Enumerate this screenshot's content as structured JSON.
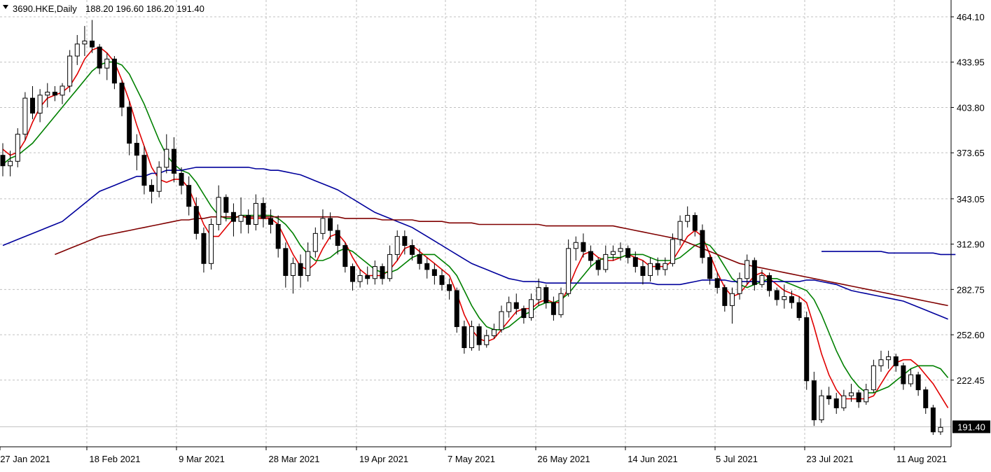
{
  "header": {
    "symbol_timeframe": "3690.HKE,Daily",
    "ohlc": "188.20 196.60 186.20 191.40"
  },
  "colors": {
    "up_body": "#ffffff",
    "down_body": "#000000",
    "ma_fast": "#e00000",
    "ma_mid": "#008000",
    "ma_slow_blue": "#00009c",
    "ma_slow_brown": "#800000",
    "grid": "#c0c0c0",
    "last_price_bg": "#000000"
  },
  "chart_data": {
    "type": "candlestick",
    "x_axis": {
      "tick_labels": [
        "27 Jan 2021",
        "18 Feb 2021",
        "9 Mar 2021",
        "28 Mar 2021",
        "19 Apr 2021",
        "7 May 2021",
        "26 May 2021",
        "14 Jun 2021",
        "5 Jul 2021",
        "23 Jul 2021",
        "11 Aug 2021"
      ]
    },
    "y_axis": {
      "tick_labels": [
        "464.10",
        "433.95",
        "403.80",
        "373.65",
        "343.05",
        "312.90",
        "282.75",
        "252.60",
        "222.45"
      ],
      "tick_values": [
        464.1,
        433.95,
        403.8,
        373.65,
        343.05,
        312.9,
        282.75,
        252.6,
        222.45
      ],
      "range": [
        186,
        468
      ]
    },
    "last_price": 191.4,
    "last_price_label": "191.40",
    "grid": true,
    "candles": [
      [
        372,
        380,
        358,
        365
      ],
      [
        365,
        375,
        358,
        368
      ],
      [
        368,
        390,
        364,
        386
      ],
      [
        386,
        414,
        382,
        410
      ],
      [
        410,
        418,
        396,
        400
      ],
      [
        400,
        416,
        394,
        412
      ],
      [
        412,
        420,
        404,
        414
      ],
      [
        414,
        418,
        408,
        412
      ],
      [
        412,
        420,
        406,
        418
      ],
      [
        418,
        442,
        414,
        438
      ],
      [
        438,
        452,
        432,
        446
      ],
      [
        446,
        458,
        438,
        448
      ],
      [
        448,
        462,
        440,
        444
      ],
      [
        444,
        446,
        426,
        430
      ],
      [
        430,
        440,
        422,
        436
      ],
      [
        436,
        438,
        416,
        420
      ],
      [
        420,
        422,
        398,
        404
      ],
      [
        404,
        408,
        372,
        380
      ],
      [
        380,
        386,
        362,
        372
      ],
      [
        372,
        378,
        346,
        352
      ],
      [
        352,
        356,
        340,
        348
      ],
      [
        348,
        368,
        344,
        364
      ],
      [
        364,
        386,
        360,
        376
      ],
      [
        376,
        384,
        354,
        360
      ],
      [
        360,
        364,
        346,
        352
      ],
      [
        352,
        358,
        332,
        338
      ],
      [
        338,
        344,
        316,
        320
      ],
      [
        320,
        324,
        294,
        300
      ],
      [
        300,
        330,
        296,
        326
      ],
      [
        326,
        352,
        322,
        344
      ],
      [
        344,
        346,
        328,
        334
      ],
      [
        334,
        340,
        318,
        328
      ],
      [
        328,
        344,
        320,
        332
      ],
      [
        332,
        336,
        320,
        326
      ],
      [
        326,
        346,
        322,
        340
      ],
      [
        340,
        344,
        324,
        330
      ],
      [
        330,
        336,
        320,
        326
      ],
      [
        326,
        332,
        304,
        310
      ],
      [
        310,
        314,
        284,
        292
      ],
      [
        292,
        304,
        280,
        300
      ],
      [
        300,
        306,
        284,
        292
      ],
      [
        292,
        314,
        288,
        308
      ],
      [
        308,
        324,
        304,
        320
      ],
      [
        320,
        336,
        316,
        330
      ],
      [
        330,
        334,
        316,
        322
      ],
      [
        322,
        326,
        306,
        312
      ],
      [
        312,
        314,
        294,
        298
      ],
      [
        298,
        300,
        282,
        288
      ],
      [
        288,
        296,
        284,
        292
      ],
      [
        292,
        298,
        286,
        290
      ],
      [
        290,
        302,
        286,
        298
      ],
      [
        298,
        300,
        286,
        290
      ],
      [
        290,
        312,
        288,
        306
      ],
      [
        306,
        322,
        302,
        318
      ],
      [
        318,
        322,
        306,
        312
      ],
      [
        312,
        316,
        302,
        306
      ],
      [
        306,
        310,
        296,
        300
      ],
      [
        300,
        304,
        290,
        296
      ],
      [
        296,
        300,
        286,
        292
      ],
      [
        292,
        296,
        282,
        286
      ],
      [
        286,
        290,
        276,
        282
      ],
      [
        282,
        284,
        254,
        258
      ],
      [
        258,
        262,
        240,
        244
      ],
      [
        244,
        262,
        242,
        258
      ],
      [
        258,
        260,
        242,
        246
      ],
      [
        246,
        256,
        244,
        252
      ],
      [
        252,
        260,
        250,
        256
      ],
      [
        256,
        272,
        254,
        268
      ],
      [
        268,
        278,
        264,
        274
      ],
      [
        274,
        280,
        266,
        270
      ],
      [
        270,
        272,
        260,
        264
      ],
      [
        264,
        280,
        262,
        276
      ],
      [
        276,
        290,
        272,
        284
      ],
      [
        284,
        286,
        270,
        274
      ],
      [
        274,
        278,
        262,
        266
      ],
      [
        266,
        284,
        264,
        280
      ],
      [
        280,
        316,
        278,
        310
      ],
      [
        310,
        318,
        302,
        314
      ],
      [
        314,
        320,
        304,
        308
      ],
      [
        308,
        312,
        298,
        302
      ],
      [
        302,
        304,
        292,
        296
      ],
      [
        296,
        312,
        294,
        306
      ],
      [
        306,
        312,
        302,
        308
      ],
      [
        308,
        314,
        302,
        310
      ],
      [
        310,
        312,
        300,
        304
      ],
      [
        304,
        308,
        294,
        298
      ],
      [
        298,
        302,
        286,
        292
      ],
      [
        292,
        304,
        288,
        300
      ],
      [
        300,
        304,
        292,
        296
      ],
      [
        296,
        304,
        292,
        300
      ],
      [
        300,
        320,
        298,
        316
      ],
      [
        316,
        332,
        312,
        328
      ],
      [
        328,
        338,
        324,
        332
      ],
      [
        332,
        334,
        318,
        322
      ],
      [
        322,
        326,
        300,
        304
      ],
      [
        304,
        306,
        286,
        290
      ],
      [
        290,
        294,
        280,
        284
      ],
      [
        284,
        286,
        268,
        272
      ],
      [
        272,
        284,
        260,
        280
      ],
      [
        280,
        294,
        276,
        290
      ],
      [
        290,
        306,
        286,
        302
      ],
      [
        302,
        304,
        282,
        286
      ],
      [
        286,
        296,
        284,
        292
      ],
      [
        292,
        294,
        278,
        282
      ],
      [
        282,
        284,
        272,
        276
      ],
      [
        276,
        286,
        270,
        278
      ],
      [
        278,
        282,
        270,
        274
      ],
      [
        274,
        278,
        262,
        264
      ],
      [
        264,
        268,
        216,
        222
      ],
      [
        222,
        228,
        192,
        196
      ],
      [
        196,
        216,
        194,
        212
      ],
      [
        212,
        218,
        206,
        210
      ],
      [
        210,
        214,
        200,
        204
      ],
      [
        204,
        216,
        202,
        212
      ],
      [
        212,
        220,
        208,
        214
      ],
      [
        214,
        216,
        204,
        208
      ],
      [
        208,
        220,
        206,
        216
      ],
      [
        216,
        236,
        214,
        232
      ],
      [
        232,
        242,
        228,
        236
      ],
      [
        236,
        242,
        230,
        238
      ],
      [
        238,
        240,
        228,
        232
      ],
      [
        232,
        234,
        216,
        220
      ],
      [
        220,
        230,
        218,
        226
      ],
      [
        226,
        228,
        212,
        216
      ],
      [
        216,
        218,
        200,
        204
      ],
      [
        204,
        206,
        186,
        188
      ],
      [
        188,
        197,
        186,
        191
      ]
    ],
    "series": [
      {
        "color_key": "ma_fast",
        "start": 0,
        "values": [
          376,
          372,
          374,
          382,
          394,
          404,
          410,
          412,
          414,
          418,
          426,
          436,
          442,
          444,
          440,
          434,
          422,
          408,
          392,
          378,
          364,
          356,
          354,
          356,
          356,
          350,
          338,
          326,
          318,
          318,
          324,
          330,
          332,
          330,
          330,
          330,
          330,
          326,
          316,
          306,
          298,
          296,
          300,
          310,
          318,
          320,
          314,
          304,
          296,
          292,
          292,
          292,
          296,
          302,
          310,
          312,
          308,
          304,
          300,
          296,
          292,
          280,
          266,
          256,
          250,
          248,
          250,
          256,
          262,
          268,
          270,
          270,
          274,
          276,
          274,
          274,
          284,
          296,
          306,
          308,
          304,
          302,
          302,
          304,
          306,
          304,
          302,
          298,
          298,
          298,
          302,
          310,
          318,
          322,
          318,
          306,
          294,
          284,
          278,
          280,
          286,
          292,
          294,
          290,
          286,
          282,
          280,
          278,
          274,
          258,
          240,
          226,
          216,
          210,
          210,
          210,
          210,
          212,
          220,
          228,
          234,
          236,
          236,
          232,
          226,
          220,
          212,
          204
        ]
      },
      {
        "color_key": "ma_mid",
        "start": 0,
        "values": [
          366,
          370,
          372,
          376,
          380,
          386,
          392,
          398,
          404,
          410,
          416,
          422,
          428,
          432,
          434,
          434,
          432,
          426,
          416,
          406,
          394,
          382,
          372,
          366,
          362,
          360,
          354,
          346,
          338,
          332,
          330,
          330,
          332,
          332,
          332,
          332,
          332,
          330,
          326,
          320,
          312,
          306,
          302,
          302,
          304,
          308,
          310,
          308,
          304,
          300,
          296,
          294,
          294,
          296,
          300,
          304,
          306,
          306,
          306,
          302,
          298,
          292,
          282,
          272,
          264,
          258,
          256,
          256,
          258,
          262,
          266,
          268,
          272,
          274,
          274,
          276,
          280,
          286,
          292,
          298,
          302,
          304,
          304,
          304,
          306,
          306,
          306,
          304,
          302,
          302,
          302,
          304,
          308,
          312,
          314,
          312,
          306,
          298,
          290,
          286,
          284,
          286,
          288,
          290,
          290,
          288,
          286,
          284,
          282,
          276,
          266,
          254,
          242,
          232,
          224,
          218,
          214,
          214,
          216,
          218,
          222,
          226,
          230,
          232,
          232,
          232,
          230,
          224
        ]
      },
      {
        "color_key": "ma_slow_blue",
        "start": 0,
        "values": [
          312,
          314,
          316,
          318,
          320,
          322,
          324,
          326,
          328,
          332,
          336,
          340,
          344,
          348,
          350,
          352,
          354,
          356,
          358,
          358,
          360,
          360,
          362,
          362,
          362,
          363,
          364,
          364,
          364,
          364,
          364,
          364,
          364,
          364,
          363,
          363,
          362,
          362,
          361,
          360,
          359,
          357,
          355,
          353,
          351,
          349,
          346,
          343,
          340,
          337,
          334,
          332,
          330,
          328,
          326,
          324,
          321,
          318,
          315,
          312,
          309,
          306,
          303,
          300,
          298,
          296,
          294,
          292,
          290,
          289,
          288,
          288,
          288,
          287,
          287,
          287,
          287,
          287,
          287,
          287,
          287,
          287,
          287,
          287,
          287,
          287,
          287,
          287,
          286,
          286,
          286,
          286,
          287,
          288,
          289,
          289,
          289,
          289,
          288,
          288,
          288,
          288,
          288,
          288,
          288,
          288,
          288,
          288,
          289,
          289,
          288,
          287,
          286,
          284,
          282,
          281,
          280,
          279,
          278,
          277,
          276,
          275,
          273,
          271,
          269,
          267,
          265,
          263
        ]
      },
      {
        "color_key": "ma_slow_brown",
        "start": 7,
        "values": [
          306,
          308,
          310,
          312,
          314,
          316,
          318,
          319,
          320,
          321,
          322,
          323,
          324,
          325,
          326,
          327,
          328,
          329,
          329,
          330,
          330,
          331,
          331,
          331,
          331,
          331,
          331,
          331,
          331,
          331,
          331,
          331,
          331,
          331,
          331,
          331,
          331,
          331,
          331,
          330,
          330,
          330,
          330,
          330,
          329,
          329,
          329,
          329,
          329,
          328,
          328,
          328,
          328,
          327,
          327,
          327,
          327,
          326,
          326,
          326,
          326,
          326,
          326,
          326,
          326,
          326,
          325,
          325,
          325,
          325,
          325,
          325,
          325,
          325,
          325,
          325,
          324,
          323,
          322,
          321,
          320,
          319,
          318,
          317,
          316,
          314,
          312,
          310,
          308,
          306,
          304,
          302,
          300,
          299,
          298,
          297,
          296,
          295,
          294,
          293,
          292,
          291,
          290,
          289,
          288,
          287,
          286,
          285,
          284,
          283,
          282,
          281,
          280,
          279,
          278,
          277,
          276,
          275,
          274,
          273,
          272
        ]
      },
      {
        "color_key": "ma_slow_blue",
        "start": 110,
        "values": [
          308,
          308,
          308,
          308,
          308,
          308,
          308,
          308,
          308,
          307,
          307,
          307,
          307,
          307,
          307,
          307,
          306,
          306,
          306
        ]
      }
    ]
  }
}
